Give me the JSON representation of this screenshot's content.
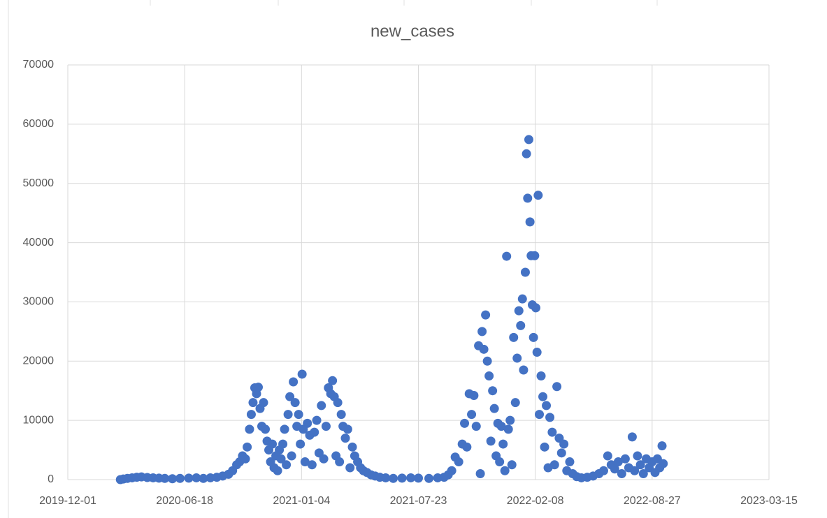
{
  "chart_data": {
    "type": "scatter",
    "title": "new_cases",
    "series": [
      {
        "name": "new_cases",
        "color": "#4472c4",
        "x": [
          "2020-02-29",
          "2020-03-05",
          "2020-03-12",
          "2020-03-20",
          "2020-03-28",
          "2020-04-05",
          "2020-04-15",
          "2020-04-25",
          "2020-05-05",
          "2020-05-15",
          "2020-05-28",
          "2020-06-10",
          "2020-06-25",
          "2020-07-08",
          "2020-07-20",
          "2020-08-01",
          "2020-08-12",
          "2020-08-22",
          "2020-09-01",
          "2020-09-08",
          "2020-09-15",
          "2020-09-20",
          "2020-09-25",
          "2020-09-30",
          "2020-10-03",
          "2020-10-07",
          "2020-10-10",
          "2020-10-13",
          "2020-10-16",
          "2020-10-19",
          "2020-10-22",
          "2020-10-25",
          "2020-10-28",
          "2020-10-31",
          "2020-11-03",
          "2020-11-06",
          "2020-11-09",
          "2020-11-12",
          "2020-11-15",
          "2020-11-18",
          "2020-11-21",
          "2020-11-24",
          "2020-11-27",
          "2020-11-30",
          "2020-12-03",
          "2020-12-06",
          "2020-12-09",
          "2020-12-12",
          "2020-12-15",
          "2020-12-18",
          "2020-12-21",
          "2020-12-24",
          "2020-12-27",
          "2020-12-30",
          "2021-01-02",
          "2021-01-05",
          "2021-01-07",
          "2021-01-10",
          "2021-01-14",
          "2021-01-18",
          "2021-01-22",
          "2021-01-26",
          "2021-01-30",
          "2021-02-03",
          "2021-02-07",
          "2021-02-11",
          "2021-02-15",
          "2021-02-19",
          "2021-02-23",
          "2021-02-26",
          "2021-03-01",
          "2021-03-04",
          "2021-03-07",
          "2021-03-10",
          "2021-03-13",
          "2021-03-16",
          "2021-03-20",
          "2021-03-24",
          "2021-03-28",
          "2021-04-01",
          "2021-04-05",
          "2021-04-10",
          "2021-04-15",
          "2021-04-20",
          "2021-04-26",
          "2021-05-03",
          "2021-05-10",
          "2021-05-18",
          "2021-05-28",
          "2021-06-10",
          "2021-06-25",
          "2021-07-10",
          "2021-07-23",
          "2021-08-10",
          "2021-08-25",
          "2021-09-05",
          "2021-09-12",
          "2021-09-18",
          "2021-09-24",
          "2021-09-30",
          "2021-10-06",
          "2021-10-10",
          "2021-10-14",
          "2021-10-18",
          "2021-10-22",
          "2021-10-26",
          "2021-10-30",
          "2021-11-03",
          "2021-11-06",
          "2021-11-09",
          "2021-11-12",
          "2021-11-15",
          "2021-11-18",
          "2021-11-21",
          "2021-11-24",
          "2021-11-27",
          "2021-11-30",
          "2021-12-03",
          "2021-12-06",
          "2021-12-09",
          "2021-12-12",
          "2021-12-15",
          "2021-12-18",
          "2021-12-21",
          "2021-12-24",
          "2021-12-27",
          "2021-12-30",
          "2022-01-02",
          "2022-01-05",
          "2022-01-08",
          "2022-01-11",
          "2022-01-14",
          "2022-01-17",
          "2022-01-19",
          "2022-01-22",
          "2022-01-24",
          "2022-01-26",
          "2022-01-28",
          "2022-01-30",
          "2022-02-01",
          "2022-02-03",
          "2022-02-05",
          "2022-02-07",
          "2022-02-09",
          "2022-02-11",
          "2022-02-13",
          "2022-02-15",
          "2022-02-18",
          "2022-02-21",
          "2022-02-24",
          "2022-02-27",
          "2022-03-02",
          "2022-03-05",
          "2022-03-09",
          "2022-03-13",
          "2022-03-17",
          "2022-03-21",
          "2022-03-25",
          "2022-03-29",
          "2022-04-03",
          "2022-04-08",
          "2022-04-13",
          "2022-04-20",
          "2022-04-28",
          "2022-05-08",
          "2022-05-18",
          "2022-05-28",
          "2022-06-05",
          "2022-06-12",
          "2022-06-18",
          "2022-06-24",
          "2022-06-30",
          "2022-07-06",
          "2022-07-12",
          "2022-07-18",
          "2022-07-24",
          "2022-07-28",
          "2022-08-02",
          "2022-08-07",
          "2022-08-12",
          "2022-08-17",
          "2022-08-22",
          "2022-08-27",
          "2022-09-01",
          "2022-09-05",
          "2022-09-09",
          "2022-09-13",
          "2022-09-15"
        ],
        "values": [
          0,
          100,
          200,
          300,
          400,
          450,
          350,
          300,
          250,
          200,
          150,
          200,
          250,
          300,
          200,
          300,
          400,
          600,
          900,
          1500,
          2500,
          3000,
          4000,
          3500,
          5500,
          8500,
          11000,
          13000,
          15500,
          14500,
          15600,
          12000,
          9000,
          13000,
          8500,
          6500,
          5000,
          3000,
          6000,
          2000,
          4000,
          1500,
          5000,
          3500,
          6000,
          8500,
          2500,
          11000,
          14000,
          4000,
          16500,
          13000,
          9000,
          11000,
          6000,
          17800,
          8500,
          3000,
          9500,
          7500,
          2500,
          8000,
          10000,
          4500,
          12500,
          3500,
          9000,
          15500,
          14500,
          16700,
          14000,
          4000,
          13000,
          3000,
          11000,
          9000,
          7000,
          8500,
          2000,
          5500,
          4000,
          3000,
          2000,
          1500,
          1200,
          800,
          600,
          400,
          300,
          200,
          250,
          300,
          250,
          200,
          300,
          400,
          800,
          1500,
          3800,
          3000,
          6000,
          9500,
          5500,
          14500,
          11000,
          14200,
          9000,
          22600,
          1000,
          25000,
          22000,
          27800,
          20000,
          17500,
          6500,
          15000,
          12000,
          4000,
          9500,
          3000,
          9000,
          6000,
          1500,
          37700,
          8500,
          10000,
          2500,
          24000,
          13000,
          20500,
          28500,
          26000,
          30500,
          18500,
          35000,
          55000,
          47500,
          57400,
          43500,
          37800,
          29500,
          24000,
          37800,
          29000,
          21500,
          48000,
          11000,
          17500,
          14000,
          5500,
          12500,
          2000,
          10500,
          8000,
          2500,
          15700,
          7000,
          4500,
          6000,
          1500,
          3000,
          1000,
          500,
          300,
          400,
          600,
          1000,
          1500,
          4000,
          2500,
          1800,
          3000,
          1000,
          3500,
          2000,
          7200,
          1500,
          4000,
          2500,
          1000,
          3500,
          2000,
          3000,
          1200,
          3500,
          2000,
          5700,
          2700
        ]
      }
    ],
    "xlim": [
      "2019-12-01",
      "2023-03-15"
    ],
    "xticks": [
      "2019-12-01",
      "2020-06-18",
      "2021-01-04",
      "2021-07-23",
      "2022-02-08",
      "2022-08-27",
      "2023-03-15"
    ],
    "ylim": [
      0,
      70000
    ],
    "yticks": [
      0,
      10000,
      20000,
      30000,
      40000,
      50000,
      60000,
      70000
    ],
    "grid": true
  }
}
